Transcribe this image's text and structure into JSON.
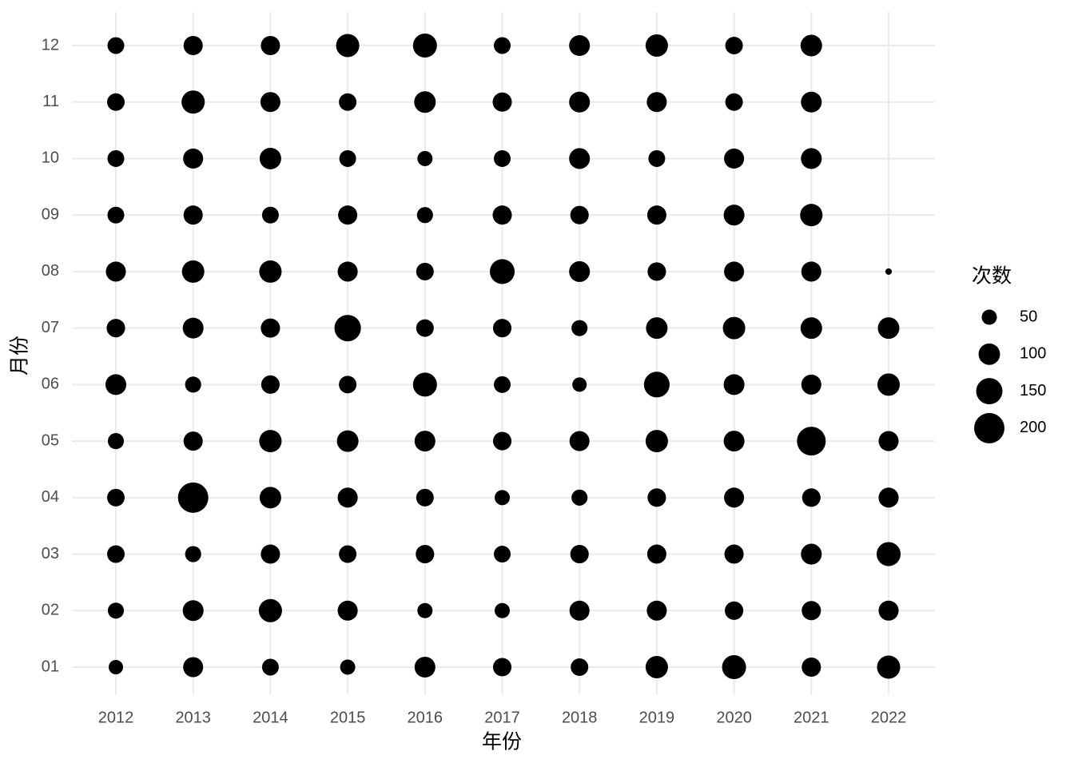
{
  "chart_data": {
    "type": "bubble",
    "x_label": "年份",
    "y_label": "月份",
    "x_categories": [
      "2012",
      "2013",
      "2014",
      "2015",
      "2016",
      "2017",
      "2018",
      "2019",
      "2020",
      "2021",
      "2022"
    ],
    "y_categories": [
      "01",
      "02",
      "03",
      "04",
      "05",
      "06",
      "07",
      "08",
      "09",
      "10",
      "11",
      "12"
    ],
    "values": [
      [
        45,
        56,
        67,
        67,
        56,
        94,
        74,
        87,
        61,
        61,
        67,
        61
      ],
      [
        87,
        94,
        56,
        200,
        80,
        56,
        94,
        109,
        80,
        87,
        117,
        80
      ],
      [
        61,
        117,
        80,
        101,
        109,
        74,
        80,
        109,
        61,
        101,
        87,
        80
      ],
      [
        50,
        87,
        67,
        87,
        101,
        67,
        152,
        87,
        80,
        61,
        67,
        117
      ],
      [
        94,
        50,
        74,
        67,
        94,
        125,
        67,
        67,
        56,
        50,
        101,
        125
      ],
      [
        74,
        50,
        61,
        50,
        74,
        61,
        74,
        134,
        80,
        61,
        80,
        61
      ],
      [
        67,
        87,
        74,
        56,
        87,
        45,
        56,
        94,
        74,
        94,
        94,
        94
      ],
      [
        109,
        87,
        80,
        74,
        109,
        143,
        101,
        74,
        80,
        61,
        87,
        109
      ],
      [
        125,
        74,
        80,
        87,
        94,
        94,
        109,
        87,
        94,
        87,
        67,
        67
      ],
      [
        80,
        80,
        94,
        74,
        180,
        87,
        101,
        87,
        109,
        94,
        94,
        101
      ],
      [
        117,
        87,
        125,
        87,
        87,
        109,
        101,
        9,
        null,
        null,
        null,
        null
      ]
    ],
    "color": "#000000",
    "grid": true,
    "size_legend": {
      "title": "次数",
      "values": [
        50,
        100,
        150,
        200
      ]
    }
  }
}
